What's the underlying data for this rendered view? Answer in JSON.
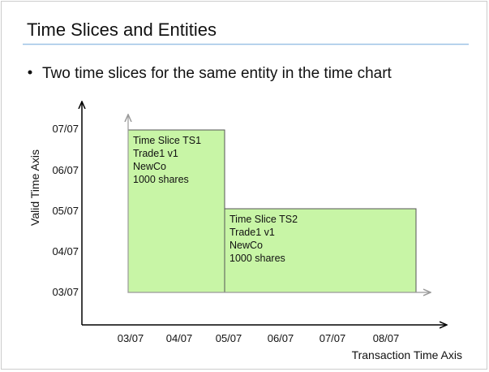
{
  "title": "Time Slices and Entities",
  "bullets": [
    "Two time slices for the same entity in the time chart"
  ],
  "diagram": {
    "y_axis_label": "Valid Time Axis",
    "x_axis_label": "Transaction Time Axis",
    "y_ticks": [
      "03/07",
      "04/07",
      "05/07",
      "06/07",
      "07/07"
    ],
    "x_ticks": [
      "03/07",
      "04/07",
      "05/07",
      "06/07",
      "07/07",
      "08/07"
    ],
    "slices": [
      {
        "lines": [
          "Time Slice TS1",
          "Trade1 v1",
          "NewCo",
          "1000 shares"
        ]
      },
      {
        "lines": [
          "Time Slice TS2",
          "Trade1 v1",
          "NewCo",
          "1000 shares"
        ]
      }
    ]
  }
}
